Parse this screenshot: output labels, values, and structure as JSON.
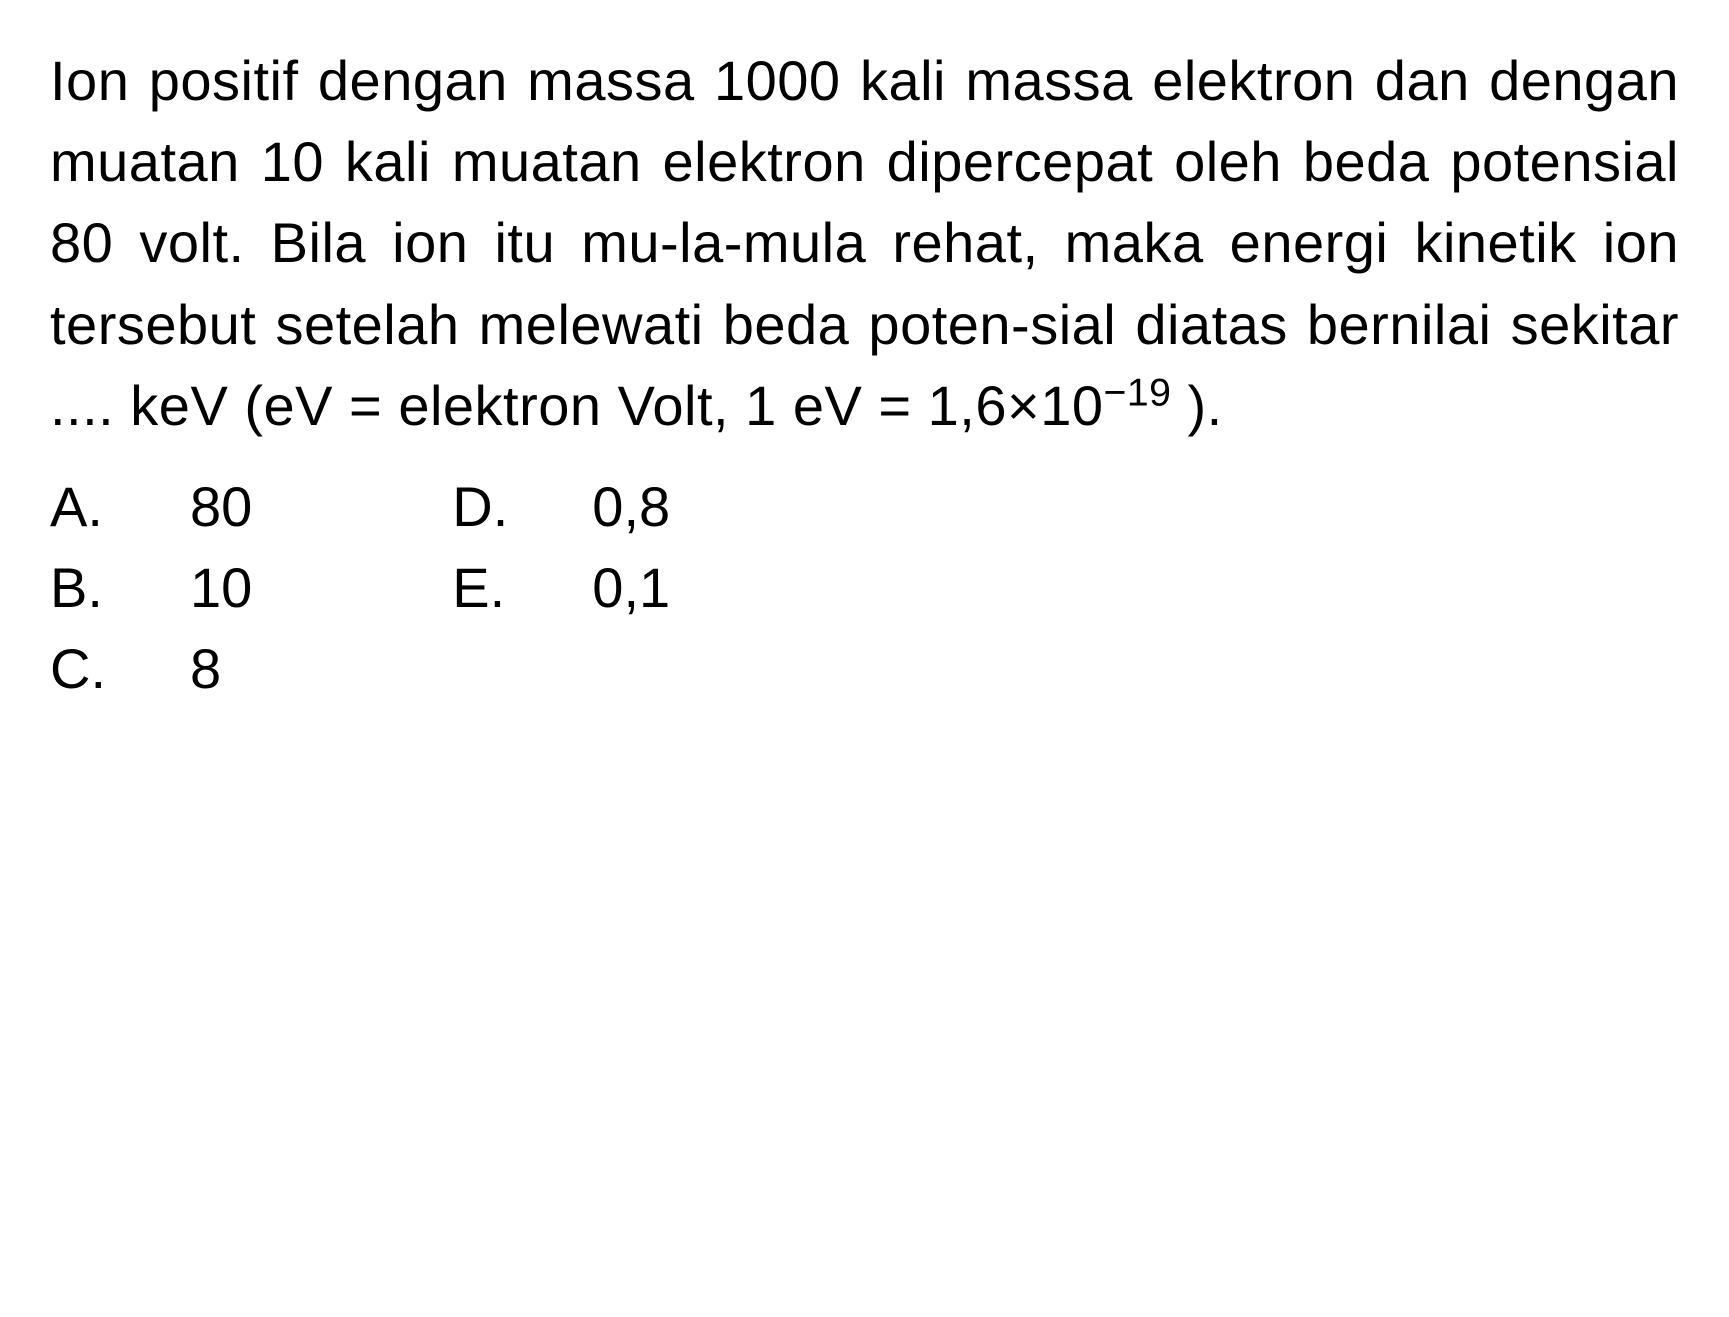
{
  "question": {
    "line1": "Ion positif dengan massa 1000 kali massa elektron dan dengan muatan 10 kali muatan elektron dipercepat oleh beda potensial 80 volt. Bila ion itu mu-la-mula rehat, maka energi kinetik ion tersebut setelah melewati beda poten-sial diatas bernilai sekitar .... keV (eV = elektron Volt, 1 eV = 1,6×10",
    "exponent": "−19",
    "line1_end": " )."
  },
  "options": {
    "left": [
      {
        "letter": "A.",
        "value": "80"
      },
      {
        "letter": "B.",
        "value": "10"
      },
      {
        "letter": "C.",
        "value": "8"
      }
    ],
    "right": [
      {
        "letter": "D.",
        "value": "0,8"
      },
      {
        "letter": "E.",
        "value": "0,1"
      }
    ]
  },
  "styling": {
    "background_color": "#ffffff",
    "text_color": "#000000",
    "font_size": 56,
    "line_height": 1.45
  }
}
